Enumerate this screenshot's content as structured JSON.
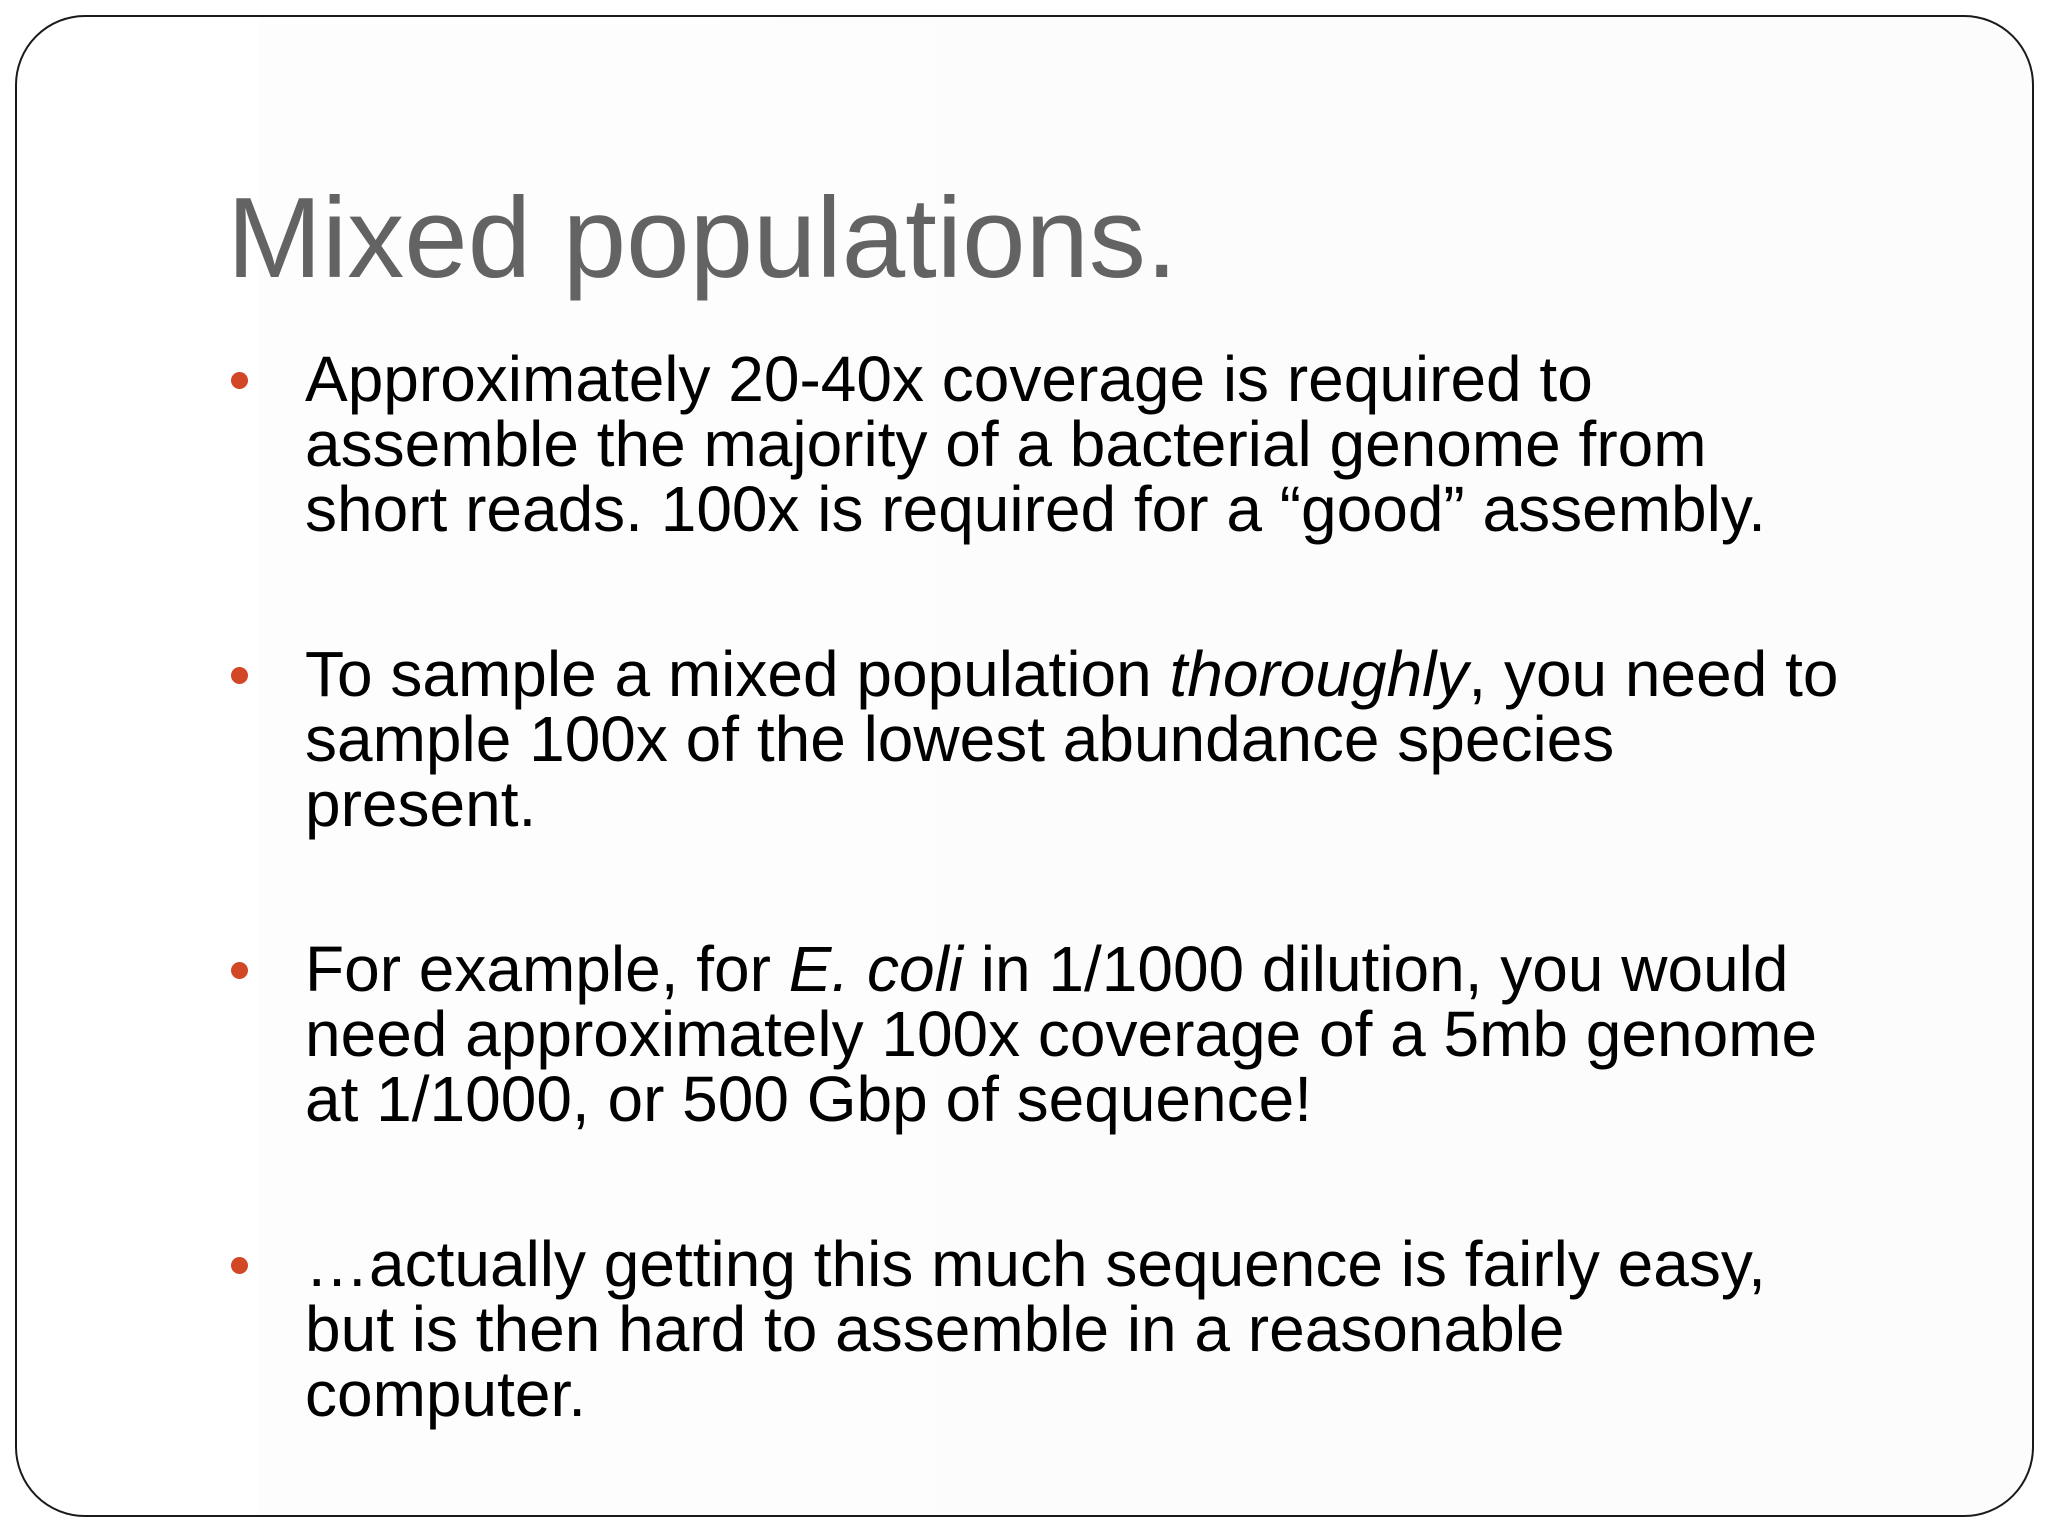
{
  "slide": {
    "title": "Mixed populations.",
    "accent_color": "#d24726",
    "bullet_icon": "bullet-dot",
    "bullets": [
      {
        "lines": [
          [
            "Approximately 20-40x coverage is required to"
          ],
          [
            "assemble the majority of a bacterial genome from"
          ],
          [
            "short reads.  100x is required for a “good” assembly."
          ]
        ]
      },
      {
        "lines": [
          [
            "To sample a mixed population ",
            "thoroughly",
            ", you need to"
          ],
          [
            "sample 100x of the lowest abundance species"
          ],
          [
            "present."
          ]
        ]
      },
      {
        "lines": [
          [
            "For example, for ",
            "E. coli",
            " in 1/1000 dilution, you would"
          ],
          [
            "need approximately 100x coverage of a 5mb genome"
          ],
          [
            "at 1/1000, or 500 Gbp of sequence!"
          ]
        ]
      },
      {
        "lines": [
          [
            "…actually getting this much sequence is fairly easy,"
          ],
          [
            "but is then hard to assemble in a reasonable"
          ],
          [
            "computer."
          ]
        ]
      }
    ]
  }
}
